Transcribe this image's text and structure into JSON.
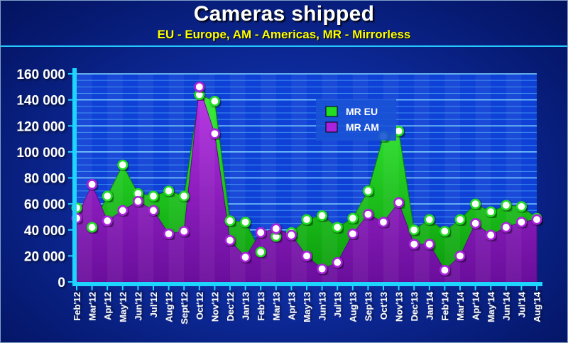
{
  "chart_data": {
    "type": "area",
    "title": "Cameras shipped",
    "subtitle": "EU - Europe, AM - Americas, MR - Mirrorless",
    "xlabel": "",
    "ylabel": "",
    "ylim": [
      0,
      160000
    ],
    "yticks": [
      0,
      20000,
      40000,
      60000,
      80000,
      100000,
      120000,
      140000,
      160000
    ],
    "ytick_labels": [
      "0",
      "20 000",
      "40 000",
      "60 000",
      "80 000",
      "100 000",
      "120 000",
      "140 000",
      "160 000"
    ],
    "grid": true,
    "legend_position": "upper-center",
    "categories": [
      "Feb'12",
      "Mar'12",
      "Apr'12",
      "May'12",
      "Jun'12",
      "Jul'12",
      "Aug'12",
      "Sept'12",
      "Oct'12",
      "Nov'12",
      "Dec'12",
      "Jan'13",
      "Feb'13",
      "Mar'13",
      "Apr'13",
      "May'13",
      "Jun'13",
      "Jul'13",
      "Aug'13",
      "Sep'13",
      "Oct'13",
      "Nov'13",
      "Dec'13",
      "Jan'14",
      "Feb'14",
      "Mar'14",
      "Apr'14",
      "May'14",
      "Jun'14",
      "Jul'14",
      "Aug'14"
    ],
    "series": [
      {
        "name": "MR EU",
        "color": "#22dd22",
        "values": [
          57000,
          42000,
          66000,
          90000,
          68000,
          66000,
          70000,
          66000,
          144000,
          139000,
          47000,
          46000,
          23000,
          35000,
          38000,
          48000,
          51000,
          42000,
          49000,
          70000,
          112000,
          116000,
          40000,
          48000,
          39000,
          48000,
          60000,
          54000,
          59000,
          58000,
          49000
        ]
      },
      {
        "name": "MR AM",
        "color": "#aa22dd",
        "values": [
          49000,
          75000,
          47000,
          55000,
          62000,
          55000,
          37000,
          39000,
          150000,
          114000,
          32000,
          19000,
          38000,
          41000,
          36000,
          20000,
          10000,
          15000,
          37000,
          52000,
          46000,
          61000,
          29000,
          29000,
          9000,
          20000,
          45000,
          36000,
          42000,
          46000,
          48000
        ]
      }
    ]
  }
}
